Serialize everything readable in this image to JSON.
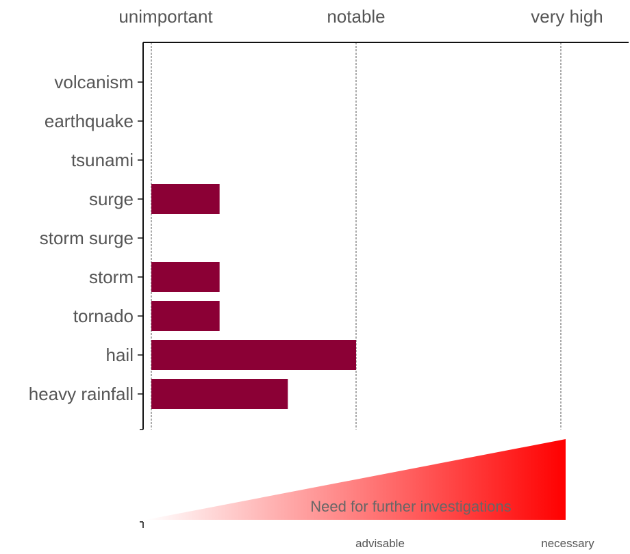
{
  "chart_data": {
    "type": "bar",
    "orientation": "horizontal",
    "categories": [
      "volcanism",
      "earthquake",
      "tsunami",
      "surge",
      "storm surge",
      "storm",
      "tornado",
      "hail",
      "heavy rainfall"
    ],
    "values": [
      0,
      0,
      0,
      1,
      0,
      1,
      1,
      3,
      2
    ],
    "xlim": [
      0,
      6
    ],
    "top_axis_ticks": [
      {
        "value": 0,
        "label": "unimportant"
      },
      {
        "value": 3,
        "label": "notable"
      },
      {
        "value": 6,
        "label": "very high"
      }
    ],
    "grid": "dashed vertical lines at 0, 3, 6",
    "bar_color": "#8b0035",
    "gradient": {
      "label": "Need for further investigations",
      "color_from": "#ffffff",
      "color_to": "#ff0000",
      "bottom_labels": [
        {
          "value": 3,
          "label": "advisable"
        },
        {
          "value": 6,
          "label": "necessary"
        }
      ]
    }
  }
}
